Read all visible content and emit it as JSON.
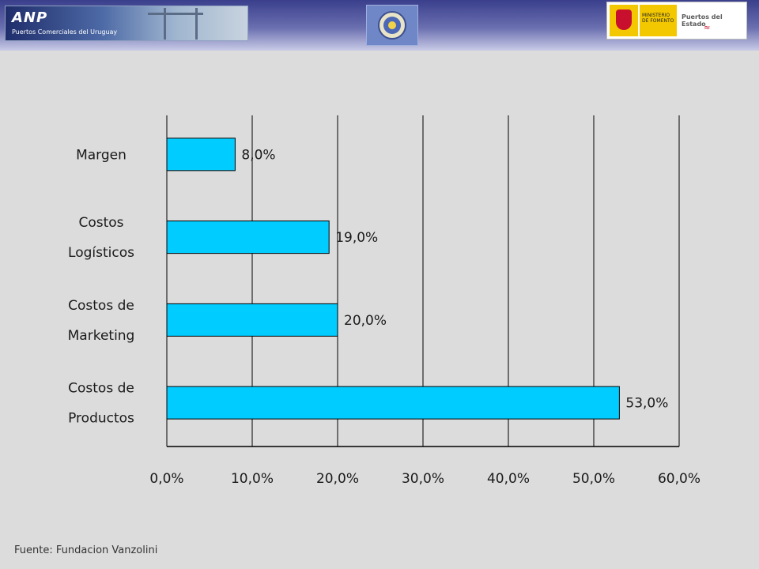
{
  "header": {
    "logo_left": {
      "brand": "ANP",
      "subtitle": "Puertos Comerciales del Uruguay"
    },
    "logo_center": {
      "name": "OAS emblem"
    },
    "logo_right": {
      "ministry": "MINISTERIO DE FOMENTO",
      "brand": "Puertos del Estado"
    }
  },
  "chart_data": {
    "type": "bar",
    "orientation": "horizontal",
    "title": "",
    "xlabel": "",
    "ylabel": "",
    "categories": [
      "Margen",
      "Costos Logísticos",
      "Costos de Marketing",
      "Costos de Productos"
    ],
    "category_lines": [
      [
        "Margen"
      ],
      [
        "Costos",
        "Logísticos"
      ],
      [
        "Costos de",
        "Marketing"
      ],
      [
        "Costos de",
        "Productos"
      ]
    ],
    "values": [
      8.0,
      19.0,
      20.0,
      53.0
    ],
    "value_labels": [
      "8,0%",
      "19,0%",
      "20,0%",
      "53,0%"
    ],
    "xlim": [
      0,
      60
    ],
    "x_ticks": [
      0,
      10,
      20,
      30,
      40,
      50,
      60
    ],
    "x_tick_labels": [
      "0,0%",
      "10,0%",
      "20,0%",
      "30,0%",
      "40,0%",
      "50,0%",
      "60,0%"
    ],
    "grid": true,
    "legend": "none",
    "bar_color": "#00ccff"
  },
  "footer": {
    "source": "Fuente: Fundacion Vanzolini"
  }
}
